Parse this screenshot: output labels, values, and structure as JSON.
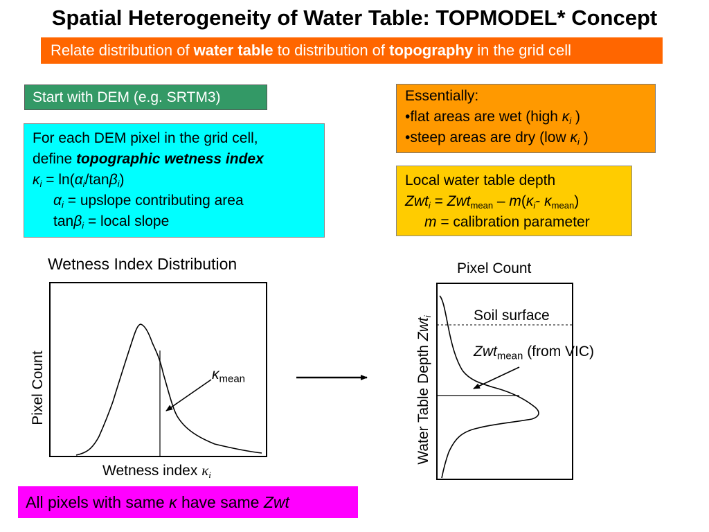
{
  "title": "Spatial Heterogeneity of Water Table: TOPMODEL* Concept",
  "banner": {
    "t1": "Relate distribution of ",
    "b1": "water table",
    "t2": " to distribution of ",
    "b2": "topography",
    "t3": " in the grid cell"
  },
  "start_dem": "Start with DEM (e.g. SRTM3)",
  "wetness_def": {
    "line1": "For each DEM pixel in the grid cell,",
    "line2_pre": "define ",
    "line2_em": "topographic wetness index",
    "kappa": "κ",
    "i": "i",
    "eq": " = ln(",
    "alpha": "α",
    "slash_tan": "/tan",
    "beta": "β",
    "close": ")",
    "alpha_def": " = upslope contributing area",
    "tan": "tan",
    "beta_def_eq": " = ",
    "beta_def": "local slope"
  },
  "essentially": {
    "head": "Essentially:",
    "flat_pre": "•flat areas are wet (high ",
    "steep_pre": "•steep areas are dry  (low ",
    "kappa": "κ",
    "i": "i",
    "close": " )"
  },
  "local_depth": {
    "line1": "Local water table depth",
    "zwt": "Zwt",
    "i": "i",
    "eq": " = ",
    "mean": "mean",
    "minus": " – ",
    "m": "m",
    "open": "(",
    "kappa": "κ",
    "dash": "- ",
    "close": ")",
    "m_def": " = calibration parameter"
  },
  "left_chart": {
    "title": "Wetness Index Distribution",
    "ylabel": "Pixel Count",
    "xlabel": "Wetness index ",
    "x_sym": "κ",
    "x_sub": "i",
    "annot_sym": "κ",
    "annot_sub": "mean"
  },
  "right_chart": {
    "top_label": "Pixel Count",
    "ylabel": "Water Table Depth ",
    "y_sym": "Zwt",
    "y_sub": "i",
    "soil_surface": "Soil surface",
    "zwt_sym": "Zwt",
    "zwt_sub": "mean",
    "zwt_note": " (from VIC)"
  },
  "conclusion": {
    "pre": "All pixels with same ",
    "kappa": "κ",
    "mid": " have same ",
    "zwt": "Zwt"
  },
  "colors": {
    "banner": "#ff6600",
    "green": "#339966",
    "cyan": "#00ffff",
    "orange": "#ff9900",
    "yellow": "#ffcc00",
    "magenta": "#ff00ff"
  }
}
